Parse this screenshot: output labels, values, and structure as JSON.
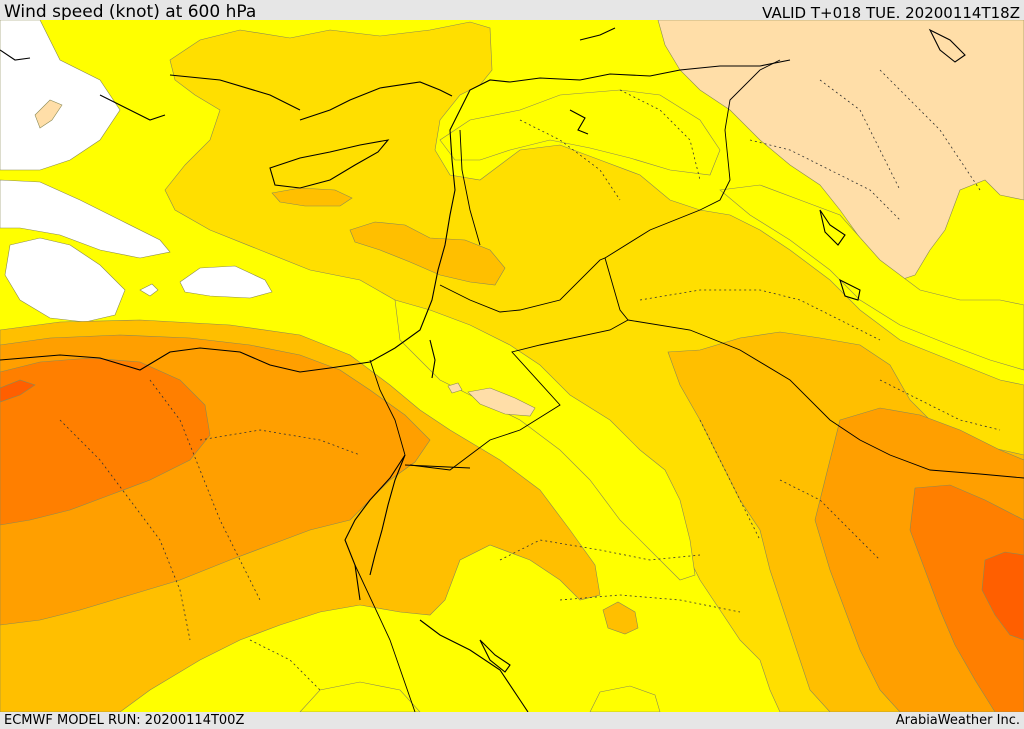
{
  "header": {
    "title": "Wind speed (knot) at 600 hPa",
    "valid_time": "VALID T+018 TUE. 20200114T18Z"
  },
  "footer": {
    "model_run": "ECMWF MODEL RUN: 20200114T00Z",
    "credit": "ArabiaWeather Inc."
  },
  "map": {
    "variable": "wind speed",
    "level_hPa": 600,
    "units": "knot",
    "colors": {
      "lowest": "#ffffff",
      "low": "#ffffff",
      "band1": "#ffff00",
      "band2": "#ffdf00",
      "band3": "#ffbf00",
      "band4": "#ff9f00",
      "band5": "#ff7f00",
      "band6": "#ff5f00",
      "band_peach": "#ffdea8",
      "border": "#000000"
    }
  }
}
